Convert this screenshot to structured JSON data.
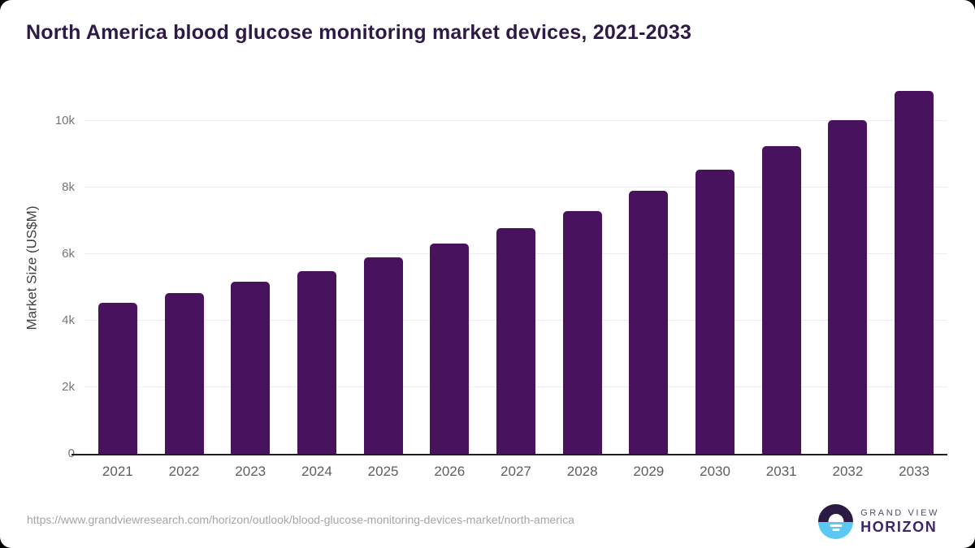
{
  "title": "North America blood glucose monitoring market devices, 2021-2033",
  "chart_data": {
    "type": "bar",
    "categories": [
      "2021",
      "2022",
      "2023",
      "2024",
      "2025",
      "2026",
      "2027",
      "2028",
      "2029",
      "2030",
      "2031",
      "2032",
      "2033"
    ],
    "values": [
      4550,
      4830,
      5170,
      5500,
      5900,
      6320,
      6780,
      7300,
      7900,
      8550,
      9250,
      10030,
      10900
    ],
    "title": "North America blood glucose monitoring market devices, 2021-2033",
    "xlabel": "",
    "ylabel": "Market Size (US$M)",
    "ylim": [
      0,
      11200
    ],
    "yticks": [
      {
        "value": 0,
        "label": "0"
      },
      {
        "value": 2000,
        "label": "2k"
      },
      {
        "value": 4000,
        "label": "4k"
      },
      {
        "value": 6000,
        "label": "6k"
      },
      {
        "value": 8000,
        "label": "8k"
      },
      {
        "value": 10000,
        "label": "10k"
      }
    ],
    "grid": "horizontal",
    "legend": "none",
    "bar_color": "#49125e"
  },
  "footer": {
    "source_url": "https://www.grandviewresearch.com/horizon/outlook/blood-glucose-monitoring-devices-market/north-america",
    "logo": {
      "line1": "GRAND VIEW",
      "line2": "HORIZON"
    }
  },
  "colors": {
    "bar": "#49125e",
    "title_text": "#2e1a47",
    "logo_navy": "#2b1a43",
    "logo_blue": "#5ac8f2"
  }
}
